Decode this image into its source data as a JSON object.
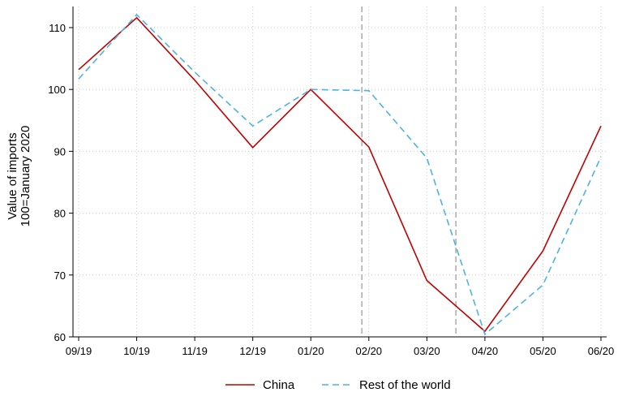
{
  "chart_data": {
    "type": "line",
    "y_label": [
      "Value of imports",
      "100=January 2020"
    ],
    "categories": [
      "09/19",
      "10/19",
      "11/19",
      "12/19",
      "01/20",
      "02/20",
      "03/20",
      "04/20",
      "05/20",
      "06/20"
    ],
    "series": [
      {
        "name": "China",
        "color": "#c00000",
        "dash": false,
        "values": [
          103.2,
          111.6,
          101.5,
          90.6,
          100,
          90.7,
          69.1,
          60.9,
          73.9,
          94.1
        ]
      },
      {
        "name": "Rest of the world",
        "color": "#4eb3e0",
        "dash": true,
        "values": [
          101.7,
          112.1,
          102.8,
          94.1,
          100,
          99.8,
          88.9,
          60.4,
          68.4,
          89.1
        ]
      }
    ],
    "vlines": [
      4.88,
      6.5
    ],
    "ylim": [
      60,
      110
    ],
    "yticks": [
      60,
      70,
      80,
      90,
      100,
      110
    ],
    "grid": true
  }
}
